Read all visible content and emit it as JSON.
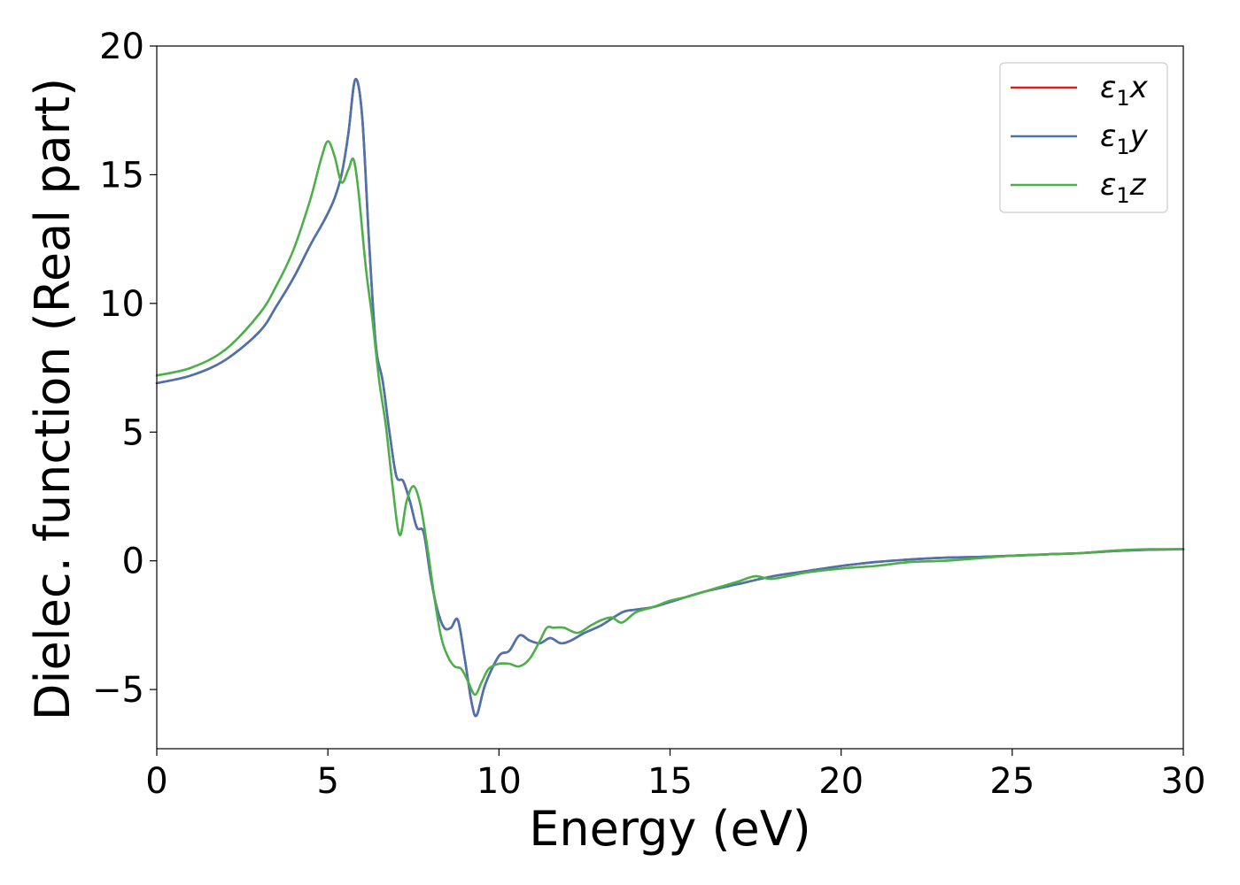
{
  "chart_data": {
    "type": "line",
    "title": "",
    "xlabel": "Energy (eV)",
    "ylabel": "Dielec. function (Real part)",
    "xlim": [
      0,
      30
    ],
    "ylim": [
      -7.3,
      20
    ],
    "xticks": [
      0,
      5,
      10,
      15,
      20,
      25,
      30
    ],
    "xtick_labels": [
      "0",
      "5",
      "10",
      "15",
      "20",
      "25",
      "30"
    ],
    "yticks": [
      -5,
      0,
      5,
      10,
      15,
      20
    ],
    "ytick_labels": [
      "−5",
      "0",
      "5",
      "10",
      "15",
      "20"
    ],
    "grid": false,
    "legend_position": "top-right",
    "series": [
      {
        "name": "ε₁x",
        "legend_base": "ε",
        "legend_sub": "1",
        "legend_var": "x",
        "color": "#e41a1c",
        "x": [
          0,
          1,
          2,
          3,
          3.5,
          4,
          4.5,
          4.8,
          5,
          5.2,
          5.4,
          5.6,
          5.8,
          6.0,
          6.2,
          6.4,
          6.6,
          6.8,
          7.0,
          7.2,
          7.4,
          7.6,
          7.8,
          8.0,
          8.2,
          8.4,
          8.6,
          8.8,
          9.0,
          9.2,
          9.35,
          9.6,
          10.0,
          10.3,
          10.6,
          10.9,
          11.2,
          11.5,
          11.8,
          12.1,
          12.5,
          13.0,
          13.6,
          14.0,
          14.5,
          15.0,
          16.0,
          17.0,
          18.0,
          19.0,
          20.0,
          21.0,
          22.0,
          23.0,
          24.0,
          25.0,
          26.0,
          27.0,
          28.0,
          29.0,
          30.0
        ],
        "values": [
          6.9,
          7.2,
          7.8,
          8.9,
          9.9,
          11.0,
          12.3,
          13.0,
          13.5,
          14.1,
          15.0,
          16.6,
          18.7,
          17.3,
          12.5,
          8.4,
          7.0,
          5.0,
          3.3,
          3.1,
          2.3,
          1.3,
          1.1,
          -0.6,
          -1.9,
          -2.6,
          -2.6,
          -2.3,
          -3.8,
          -5.5,
          -6.0,
          -4.8,
          -3.7,
          -3.5,
          -2.9,
          -3.1,
          -3.2,
          -3.0,
          -3.2,
          -3.1,
          -2.8,
          -2.5,
          -2.0,
          -1.9,
          -1.8,
          -1.6,
          -1.2,
          -0.9,
          -0.6,
          -0.4,
          -0.2,
          -0.05,
          0.05,
          0.12,
          0.15,
          0.2,
          0.25,
          0.3,
          0.38,
          0.43,
          0.45
        ]
      },
      {
        "name": "ε₁y",
        "legend_base": "ε",
        "legend_sub": "1",
        "legend_var": "y",
        "color": "#4a74ad",
        "x": [
          0,
          1,
          2,
          3,
          3.5,
          4,
          4.5,
          4.8,
          5,
          5.2,
          5.4,
          5.6,
          5.8,
          6.0,
          6.2,
          6.4,
          6.6,
          6.8,
          7.0,
          7.2,
          7.4,
          7.6,
          7.8,
          8.0,
          8.2,
          8.4,
          8.6,
          8.8,
          9.0,
          9.2,
          9.35,
          9.6,
          10.0,
          10.3,
          10.6,
          10.9,
          11.2,
          11.5,
          11.8,
          12.1,
          12.5,
          13.0,
          13.6,
          14.0,
          14.5,
          15.0,
          16.0,
          17.0,
          18.0,
          19.0,
          20.0,
          21.0,
          22.0,
          23.0,
          24.0,
          25.0,
          26.0,
          27.0,
          28.0,
          29.0,
          30.0
        ],
        "values": [
          6.9,
          7.2,
          7.8,
          8.9,
          9.9,
          11.0,
          12.3,
          13.0,
          13.5,
          14.1,
          15.0,
          16.6,
          18.7,
          17.3,
          12.5,
          8.4,
          7.0,
          5.0,
          3.3,
          3.1,
          2.3,
          1.3,
          1.1,
          -0.6,
          -1.9,
          -2.6,
          -2.6,
          -2.3,
          -3.8,
          -5.5,
          -6.0,
          -4.8,
          -3.7,
          -3.5,
          -2.9,
          -3.1,
          -3.2,
          -3.0,
          -3.2,
          -3.1,
          -2.8,
          -2.5,
          -2.0,
          -1.9,
          -1.8,
          -1.6,
          -1.2,
          -0.9,
          -0.6,
          -0.4,
          -0.2,
          -0.05,
          0.05,
          0.12,
          0.15,
          0.2,
          0.25,
          0.3,
          0.38,
          0.43,
          0.45
        ]
      },
      {
        "name": "ε₁z",
        "legend_base": "ε",
        "legend_sub": "1",
        "legend_var": "z",
        "color": "#4daf4a",
        "x": [
          0,
          1,
          2,
          3,
          3.5,
          4,
          4.5,
          4.8,
          5.0,
          5.2,
          5.4,
          5.6,
          5.75,
          5.9,
          6.1,
          6.3,
          6.5,
          6.7,
          6.9,
          7.1,
          7.3,
          7.5,
          7.7,
          7.9,
          8.1,
          8.3,
          8.5,
          8.7,
          8.9,
          9.1,
          9.3,
          9.5,
          9.7,
          10.0,
          10.3,
          10.6,
          10.9,
          11.2,
          11.4,
          11.6,
          11.9,
          12.3,
          12.7,
          13.0,
          13.3,
          13.6,
          14.0,
          14.5,
          15.0,
          15.5,
          16.0,
          16.5,
          17.0,
          17.5,
          18.0,
          19.0,
          20.0,
          21.0,
          22.0,
          23.0,
          24.0,
          25.0,
          26.0,
          27.0,
          28.0,
          29.0,
          30.0
        ],
        "values": [
          7.2,
          7.5,
          8.2,
          9.6,
          10.7,
          12.1,
          14.1,
          15.6,
          16.3,
          15.7,
          14.7,
          15.2,
          15.6,
          14.3,
          11.5,
          9.4,
          7.0,
          5.2,
          2.8,
          1.0,
          2.3,
          2.9,
          2.2,
          0.6,
          -1.3,
          -2.9,
          -3.7,
          -4.1,
          -4.2,
          -4.7,
          -5.2,
          -4.7,
          -4.2,
          -4.0,
          -4.0,
          -4.1,
          -3.8,
          -3.1,
          -2.6,
          -2.6,
          -2.6,
          -2.8,
          -2.5,
          -2.3,
          -2.2,
          -2.4,
          -2.0,
          -1.8,
          -1.55,
          -1.4,
          -1.2,
          -1.0,
          -0.8,
          -0.6,
          -0.7,
          -0.45,
          -0.3,
          -0.2,
          -0.05,
          0.0,
          0.1,
          0.2,
          0.25,
          0.3,
          0.4,
          0.45,
          0.45
        ]
      }
    ]
  }
}
